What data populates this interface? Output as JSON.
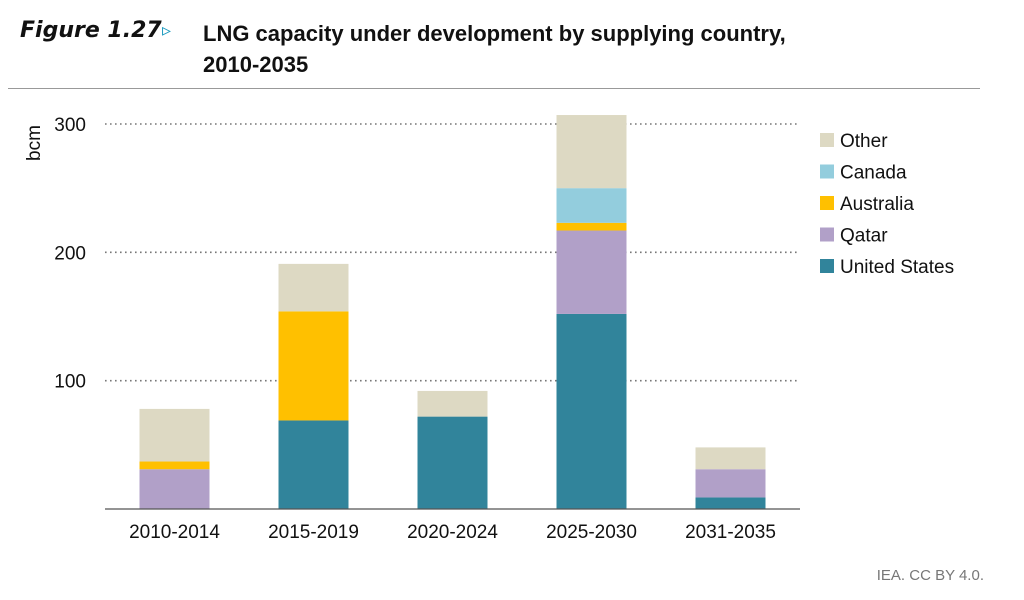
{
  "figure": {
    "number": "Figure 1.27",
    "arrow": "▹",
    "title_line1": "LNG capacity under development by supplying country,",
    "title_line2": "2010-2035",
    "source": "IEA. CC BY 4.0."
  },
  "chart_data": {
    "type": "bar",
    "stacked": true,
    "ylabel": "bcm",
    "ylim": [
      0,
      300
    ],
    "yticks": [
      100,
      200,
      300
    ],
    "grid": true,
    "legend_position": "right",
    "categories": [
      "2010-2014",
      "2015-2019",
      "2020-2024",
      "2025-2030",
      "2031-2035"
    ],
    "series": [
      {
        "name": "United States",
        "color": "#31849b",
        "values": [
          0,
          69,
          72,
          152,
          9
        ]
      },
      {
        "name": "Qatar",
        "color": "#b1a0c8",
        "values": [
          31,
          0,
          0,
          65,
          22
        ]
      },
      {
        "name": "Australia",
        "color": "#ffc000",
        "values": [
          6,
          85,
          0,
          6,
          0
        ]
      },
      {
        "name": "Canada",
        "color": "#93cddd",
        "values": [
          0,
          0,
          0,
          27,
          0
        ]
      },
      {
        "name": "Other",
        "color": "#ddd9c3",
        "values": [
          41,
          37,
          20,
          57,
          17
        ]
      }
    ],
    "legend_order": [
      "Other",
      "Canada",
      "Australia",
      "Qatar",
      "United States"
    ]
  }
}
